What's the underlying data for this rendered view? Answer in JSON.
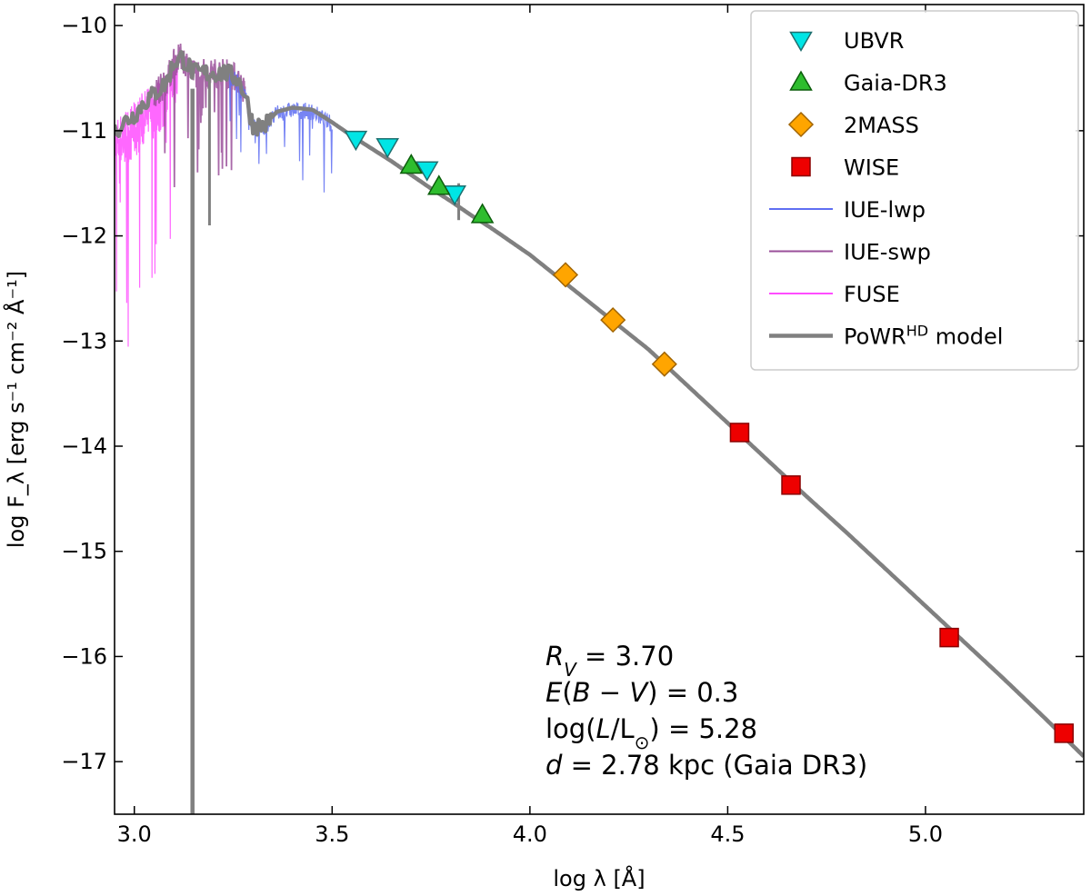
{
  "chart_data": {
    "type": "scatter",
    "xlabel": "log λ [Å]",
    "ylabel": "log F_λ [erg s⁻¹ cm⁻² Å⁻¹]",
    "xlim": [
      2.95,
      5.4
    ],
    "ylim": [
      -17.5,
      -9.8
    ],
    "xticks": [
      3.0,
      3.5,
      4.0,
      4.5,
      5.0
    ],
    "xtick_labels": [
      "3.0",
      "3.5",
      "4.0",
      "4.5",
      "5.0"
    ],
    "yticks": [
      -10,
      -11,
      -12,
      -13,
      -14,
      -15,
      -16,
      -17
    ],
    "ytick_labels": [
      "−10",
      "−11",
      "−12",
      "−13",
      "−14",
      "−15",
      "−16",
      "−17"
    ],
    "legend_position": "top-right",
    "series": [
      {
        "name": "UBVR",
        "kind": "marker",
        "marker": "triangle-down",
        "color": "#00e5e5",
        "edge": "#1f6f6f",
        "x": [
          3.56,
          3.64,
          3.74,
          3.81
        ],
        "y": [
          -11.08,
          -11.15,
          -11.37,
          -11.6
        ]
      },
      {
        "name": "Gaia-DR3",
        "kind": "marker",
        "marker": "triangle-up",
        "color": "#2ebd2e",
        "edge": "#0b5d0b",
        "x": [
          3.7,
          3.77,
          3.88
        ],
        "y": [
          -11.33,
          -11.53,
          -11.8
        ]
      },
      {
        "name": "2MASS",
        "kind": "marker",
        "marker": "diamond",
        "color": "#ffa500",
        "edge": "#a06400",
        "x": [
          4.09,
          4.21,
          4.34
        ],
        "y": [
          -12.37,
          -12.8,
          -13.22
        ]
      },
      {
        "name": "WISE",
        "kind": "marker",
        "marker": "square",
        "color": "#ee0000",
        "edge": "#8a0000",
        "x": [
          4.53,
          4.66,
          5.06,
          5.35
        ],
        "y": [
          -13.87,
          -14.37,
          -15.82,
          -16.73
        ]
      },
      {
        "name": "IUE-lwp",
        "kind": "line",
        "color": "#5f6ff2",
        "width": 1.2
      },
      {
        "name": "IUE-swp",
        "kind": "line",
        "color": "#9a4f9a",
        "width": 1.8
      },
      {
        "name": "FUSE",
        "kind": "line",
        "color": "#ff4dff",
        "width": 1.2
      },
      {
        "name": "PoWR",
        "name_sup": "HD",
        "name_suffix": " model",
        "kind": "line",
        "color": "#808080",
        "width": 4.5
      }
    ],
    "model_curve": {
      "x": [
        2.95,
        2.98,
        3.0,
        3.02,
        3.05,
        3.08,
        3.1,
        3.12,
        3.15,
        3.18,
        3.2,
        3.23,
        3.26,
        3.28,
        3.3,
        3.33,
        3.36,
        3.4,
        3.45,
        3.5,
        3.55,
        3.6,
        3.65,
        3.7,
        3.75,
        3.8,
        3.85,
        3.9,
        4.0,
        4.1,
        4.2,
        4.3,
        4.4,
        4.5,
        4.6,
        4.7,
        4.8,
        4.9,
        5.0,
        5.1,
        5.2,
        5.3,
        5.4
      ],
      "y": [
        -11.0,
        -10.9,
        -10.85,
        -10.75,
        -10.65,
        -10.55,
        -10.35,
        -10.3,
        -10.45,
        -10.45,
        -10.45,
        -10.45,
        -10.5,
        -10.65,
        -10.95,
        -10.95,
        -10.82,
        -10.78,
        -10.8,
        -10.92,
        -11.05,
        -11.17,
        -11.29,
        -11.42,
        -11.55,
        -11.67,
        -11.8,
        -11.92,
        -12.18,
        -12.48,
        -12.78,
        -13.08,
        -13.43,
        -13.78,
        -14.13,
        -14.48,
        -14.82,
        -15.17,
        -15.52,
        -15.87,
        -16.22,
        -16.58,
        -16.95
      ]
    },
    "annotation_lines": [
      {
        "italic": "R",
        "sub": "V",
        "rest": " = 3.70"
      },
      {
        "italic": "E",
        "rest": "(",
        "italic2": "B",
        "rest2": " − ",
        "italic3": "V",
        "rest3": ") = 0.3"
      },
      {
        "text1": "log(",
        "italic": "L",
        "text2": "/L",
        "sub": "⊙",
        "text3": ") = 5.28"
      },
      {
        "italic": "d",
        "rest": " = 2.78 kpc (Gaia DR3)"
      }
    ]
  }
}
